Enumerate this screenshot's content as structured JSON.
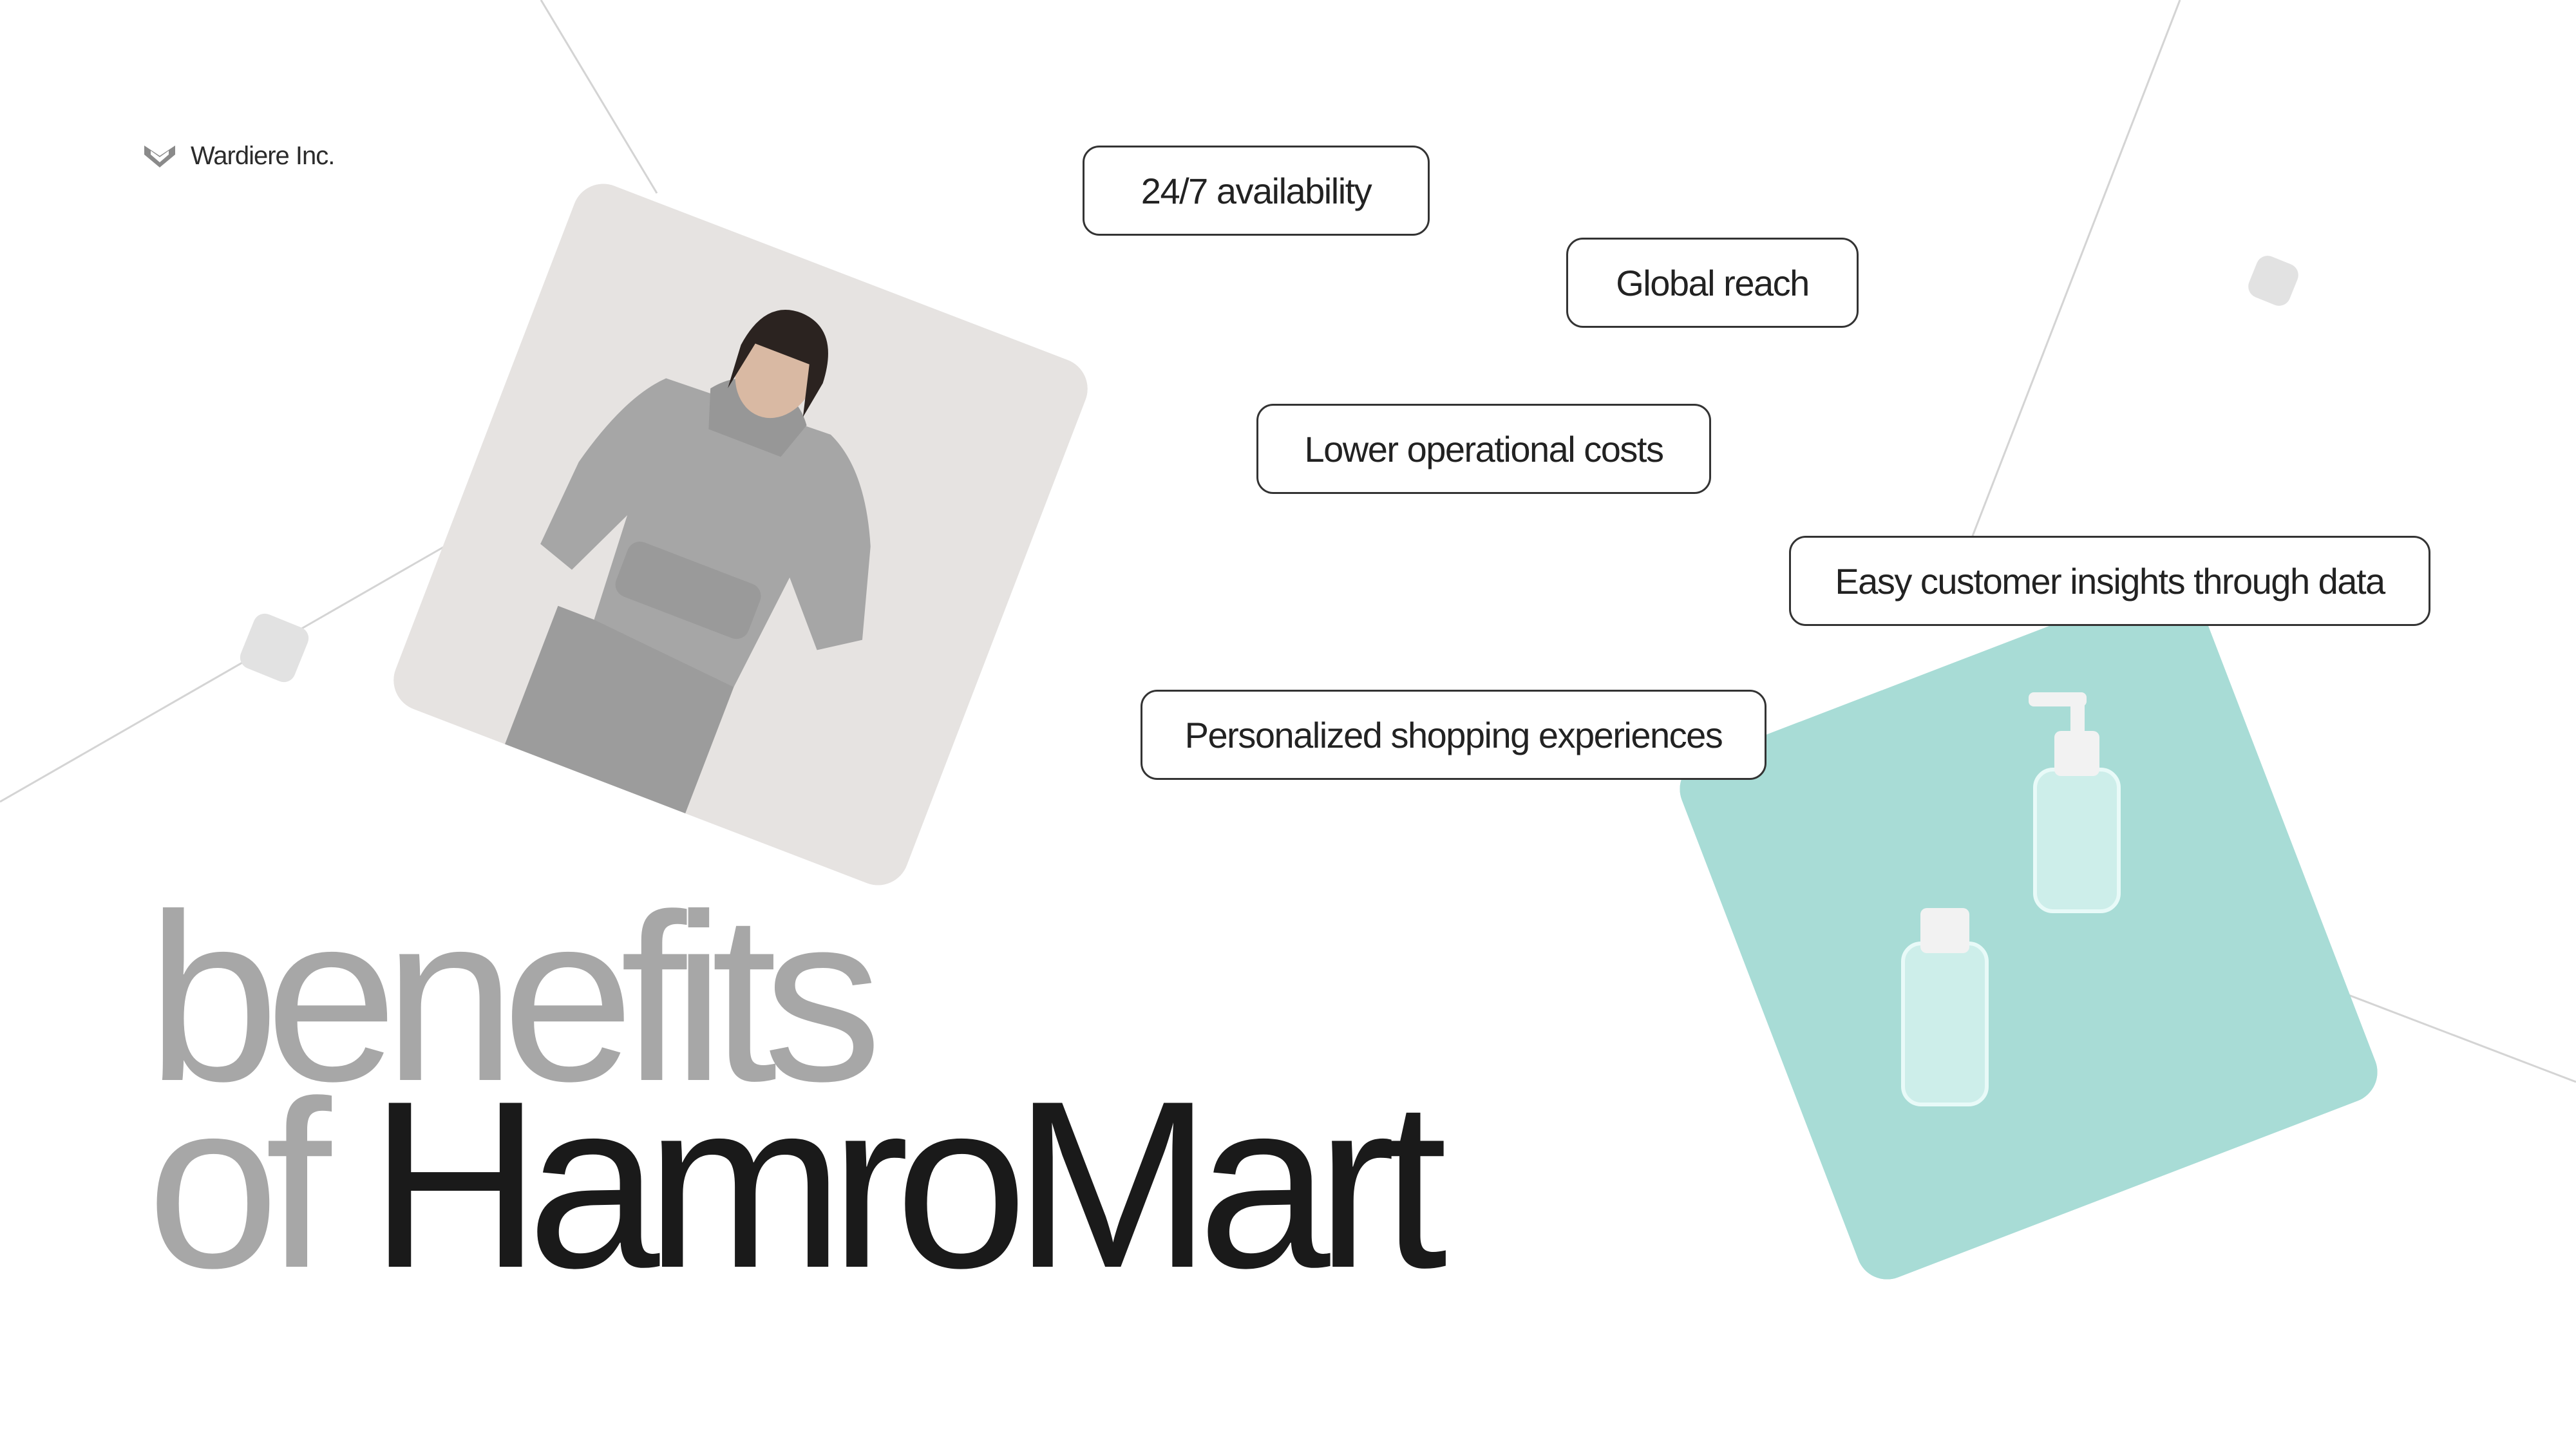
{
  "brand": {
    "name": "Wardiere Inc.",
    "icon": "heart-chevron-logo-icon"
  },
  "benefits": [
    "24/7 availability",
    "Global reach",
    "Lower operational costs",
    "Easy customer insights through data",
    "Personalized shopping experiences"
  ],
  "headline": {
    "line1": "benefits",
    "line2_prefix": "of",
    "line2_main": "HamroMart"
  },
  "colors": {
    "accent_teal": "#a8dcd6",
    "title_grey": "#a7a7a7",
    "title_dark": "#1a1a1a"
  },
  "images": {
    "person": "person-in-grey-hoodie-photo",
    "product": "hand-sanitizer-bottles-photo"
  }
}
